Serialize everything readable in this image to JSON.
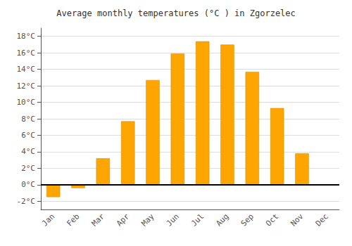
{
  "chart_data": {
    "type": "bar",
    "title": "Average monthly temperatures (°C ) in Zgorzelec",
    "categories": [
      "Jan",
      "Feb",
      "Mar",
      "Apr",
      "May",
      "Jun",
      "Jul",
      "Aug",
      "Sep",
      "Oct",
      "Nov",
      "Dec"
    ],
    "values": [
      -1.5,
      -0.4,
      3.2,
      7.7,
      12.7,
      15.9,
      17.4,
      17.0,
      13.7,
      9.3,
      3.8,
      0.0
    ],
    "color": "#FFA500",
    "ylim": [
      -3,
      19
    ],
    "yticks": [
      {
        "value": -2,
        "label": "-2°C"
      },
      {
        "value": 0,
        "label": "0°C"
      },
      {
        "value": 2,
        "label": "2°C"
      },
      {
        "value": 4,
        "label": "4°C"
      },
      {
        "value": 6,
        "label": "6°C"
      },
      {
        "value": 8,
        "label": "8°C"
      },
      {
        "value": 10,
        "label": "10°C"
      },
      {
        "value": 12,
        "label": "12°C"
      },
      {
        "value": 14,
        "label": "14°C"
      },
      {
        "value": 16,
        "label": "16°C"
      },
      {
        "value": 18,
        "label": "18°C"
      }
    ],
    "grid": true
  }
}
